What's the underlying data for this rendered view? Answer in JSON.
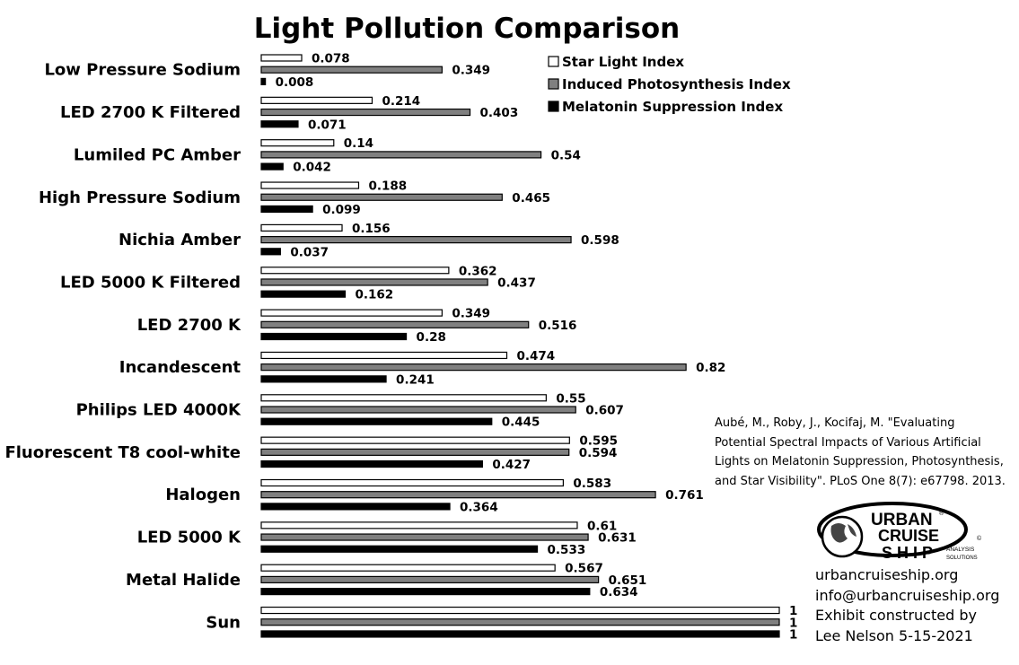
{
  "chart_data": {
    "type": "bar",
    "orientation": "horizontal",
    "title": "Light Pollution Comparison",
    "xlim": [
      0,
      1
    ],
    "grid": false,
    "legend_position": "top-right",
    "categories": [
      "Low Pressure Sodium",
      "LED 2700 K Filtered",
      "Lumiled PC Amber",
      "High Pressure Sodium",
      "Nichia Amber",
      "LED 5000 K Filtered",
      "LED 2700 K",
      "Incandescent",
      "Philips LED 4000K",
      "Fluorescent T8 cool-white",
      "Halogen",
      "LED 5000 K",
      "Metal Halide",
      "Sun"
    ],
    "series": [
      {
        "name": "Star Light Index",
        "color": "#ffffff",
        "values": [
          0.078,
          0.214,
          0.14,
          0.188,
          0.156,
          0.362,
          0.349,
          0.474,
          0.55,
          0.595,
          0.583,
          0.61,
          0.567,
          1
        ],
        "labels": [
          "0.078",
          "0.214",
          "0.14",
          "0.188",
          "0.156",
          "0.362",
          "0.349",
          "0.474",
          "0.55",
          "0.595",
          "0.583",
          "0.61",
          "0.567",
          "1"
        ]
      },
      {
        "name": "Induced Photosynthesis Index",
        "color": "#808080",
        "values": [
          0.349,
          0.403,
          0.54,
          0.465,
          0.598,
          0.437,
          0.516,
          0.82,
          0.607,
          0.594,
          0.761,
          0.631,
          0.651,
          1
        ],
        "labels": [
          "0.349",
          "0.403",
          "0.54",
          "0.465",
          "0.598",
          "0.437",
          "0.516",
          "0.82",
          "0.607",
          "0.594",
          "0.761",
          "0.631",
          "0.651",
          "1"
        ]
      },
      {
        "name": "Melatonin Suppression Index",
        "color": "#000000",
        "values": [
          0.008,
          0.071,
          0.042,
          0.099,
          0.037,
          0.162,
          0.28,
          0.241,
          0.445,
          0.427,
          0.364,
          0.533,
          0.634,
          1
        ],
        "labels": [
          "0.008",
          "0.071",
          "0.042",
          "0.099",
          "0.037",
          "0.162",
          "0.28",
          "0.241",
          "0.445",
          "0.427",
          "0.364",
          "0.533",
          "0.634",
          "1"
        ]
      }
    ]
  },
  "citation": {
    "lines": [
      "Aubé, M., Roby, J., Kocifaj, M. \"Evaluating",
      "Potential Spectral Impacts of Various Artificial",
      "Lights on Melatonin Suppression, Photosynthesis,",
      "and Star Visibility\". PLoS One 8(7): e67798. 2013."
    ]
  },
  "logo": {
    "line1": "URBAN",
    "line2": "CRUISE",
    "line3": "SHIP",
    "sub1": "ANALYSIS",
    "sub2": "SOLUTIONS",
    "registered": "®",
    "copyright": "©"
  },
  "contact": {
    "website": "urbancruiseship.org",
    "email": "info@urbancruiseship.org",
    "credit_line1": "Exhibit constructed by",
    "credit_line2": "Lee Nelson 5-15-2021"
  }
}
